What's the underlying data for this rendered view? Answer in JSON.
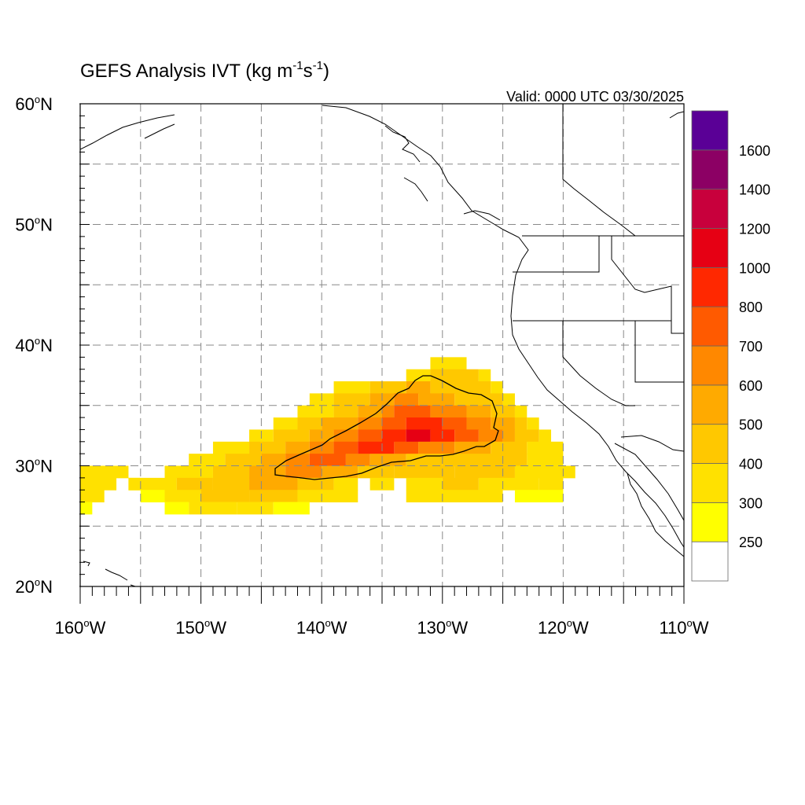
{
  "header": {
    "title_prefix": "GEFS Analysis IVT (kg m",
    "title_exp1": "-1",
    "title_mid": "s",
    "title_exp2": "-1",
    "title_suffix": ")",
    "valid": "Valid: 0000 UTC 03/30/2025"
  },
  "map": {
    "lon_range": [
      -160,
      -110
    ],
    "lat_range": [
      20,
      60
    ],
    "lat_labels": [
      {
        "lat": 60,
        "num": "60",
        "hemi": "N"
      },
      {
        "lat": 50,
        "num": "50",
        "hemi": "N"
      },
      {
        "lat": 40,
        "num": "40",
        "hemi": "N"
      },
      {
        "lat": 30,
        "num": "30",
        "hemi": "N"
      },
      {
        "lat": 20,
        "num": "20",
        "hemi": "N"
      }
    ],
    "lon_labels": [
      {
        "lon": -160,
        "num": "160",
        "hemi": "W"
      },
      {
        "lon": -150,
        "num": "150",
        "hemi": "W"
      },
      {
        "lon": -140,
        "num": "140",
        "hemi": "W"
      },
      {
        "lon": -130,
        "num": "130",
        "hemi": "W"
      },
      {
        "lon": -120,
        "num": "120",
        "hemi": "W"
      },
      {
        "lon": -110,
        "num": "110",
        "hemi": "W"
      }
    ],
    "grid_lats": [
      25,
      30,
      35,
      40,
      45,
      50,
      55
    ],
    "grid_lons": [
      -155,
      -150,
      -145,
      -140,
      -135,
      -130,
      -125,
      -120,
      -115
    ],
    "ivt_field": {
      "units": "kg m-1 s-1",
      "cell_deg": 1,
      "rows": [
        {
          "lat": 38.5,
          "cells": [
            [
              -131,
              -128,
              300
            ]
          ]
        },
        {
          "lat": 37.5,
          "cells": [
            [
              -133,
              -131,
              300
            ],
            [
              -131,
              -127,
              400
            ],
            [
              -127,
              -126,
              300
            ]
          ]
        },
        {
          "lat": 36.5,
          "cells": [
            [
              -139,
              -136,
              300
            ],
            [
              -136,
              -133,
              400
            ],
            [
              -133,
              -131,
              500
            ],
            [
              -131,
              -126,
              400
            ],
            [
              -126,
              -125,
              300
            ]
          ]
        },
        {
          "lat": 35.5,
          "cells": [
            [
              -141,
              -139,
              300
            ],
            [
              -139,
              -136,
              400
            ],
            [
              -136,
              -134,
              500
            ],
            [
              -134,
              -132,
              600
            ],
            [
              -132,
              -129,
              500
            ],
            [
              -129,
              -125,
              400
            ],
            [
              -125,
              -124,
              300
            ]
          ]
        },
        {
          "lat": 34.5,
          "cells": [
            [
              -142,
              -139,
              300
            ],
            [
              -139,
              -137,
              400
            ],
            [
              -137,
              -135,
              500
            ],
            [
              -135,
              -134,
              600
            ],
            [
              -134,
              -131,
              700
            ],
            [
              -131,
              -128,
              600
            ],
            [
              -128,
              -126,
              500
            ],
            [
              -126,
              -124,
              400
            ],
            [
              -124,
              -123,
              300
            ]
          ]
        },
        {
          "lat": 33.5,
          "cells": [
            [
              -144,
              -142,
              300
            ],
            [
              -142,
              -140,
              400
            ],
            [
              -140,
              -137,
              500
            ],
            [
              -137,
              -135,
              600
            ],
            [
              -135,
              -133,
              700
            ],
            [
              -133,
              -130,
              800
            ],
            [
              -130,
              -128,
              700
            ],
            [
              -128,
              -126,
              600
            ],
            [
              -126,
              -124,
              500
            ],
            [
              -124,
              -123,
              400
            ],
            [
              -123,
              -122,
              300
            ]
          ]
        },
        {
          "lat": 32.5,
          "cells": [
            [
              -146,
              -144,
              300
            ],
            [
              -144,
              -141,
              400
            ],
            [
              -141,
              -139,
              500
            ],
            [
              -139,
              -137,
              600
            ],
            [
              -137,
              -135,
              700
            ],
            [
              -135,
              -133,
              800
            ],
            [
              -133,
              -131,
              1000
            ],
            [
              -131,
              -129,
              800
            ],
            [
              -129,
              -127,
              700
            ],
            [
              -127,
              -125,
              600
            ],
            [
              -125,
              -124,
              500
            ],
            [
              -124,
              -122,
              400
            ],
            [
              -122,
              -121,
              300
            ]
          ]
        },
        {
          "lat": 31.5,
          "cells": [
            [
              -149,
              -146,
              300
            ],
            [
              -146,
              -143,
              400
            ],
            [
              -143,
              -141,
              500
            ],
            [
              -141,
              -139,
              600
            ],
            [
              -139,
              -137,
              700
            ],
            [
              -137,
              -134,
              800
            ],
            [
              -134,
              -132,
              700
            ],
            [
              -132,
              -129,
              600
            ],
            [
              -129,
              -126,
              500
            ],
            [
              -126,
              -123,
              400
            ],
            [
              -123,
              -120,
              300
            ]
          ]
        },
        {
          "lat": 30.5,
          "cells": [
            [
              -151,
              -148,
              300
            ],
            [
              -148,
              -145,
              400
            ],
            [
              -145,
              -143,
              500
            ],
            [
              -143,
              -141,
              600
            ],
            [
              -141,
              -138,
              700
            ],
            [
              -138,
              -136,
              600
            ],
            [
              -136,
              -133,
              500
            ],
            [
              -133,
              -130,
              400
            ],
            [
              -130,
              -123,
              400
            ],
            [
              -123,
              -120,
              300
            ]
          ]
        },
        {
          "lat": 29.5,
          "cells": [
            [
              -160,
              -156,
              300
            ],
            [
              -153,
              -149,
              300
            ],
            [
              -149,
              -146,
              400
            ],
            [
              -146,
              -143,
              500
            ],
            [
              -143,
              -140,
              600
            ],
            [
              -140,
              -137,
              500
            ],
            [
              -137,
              -134,
              400
            ],
            [
              -134,
              -129,
              400
            ],
            [
              -129,
              -124,
              400
            ],
            [
              -124,
              -119,
              300
            ]
          ]
        },
        {
          "lat": 28.5,
          "cells": [
            [
              -160,
              -157,
              300
            ],
            [
              -156,
              -155,
              250
            ],
            [
              -156,
              -152,
              300
            ],
            [
              -152,
              -149,
              400
            ],
            [
              -149,
              -146,
              400
            ],
            [
              -146,
              -142,
              500
            ],
            [
              -142,
              -139,
              400
            ],
            [
              -139,
              -137,
              300
            ],
            [
              -136,
              -134,
              300
            ],
            [
              -133,
              -130,
              300
            ],
            [
              -130,
              -127,
              400
            ],
            [
              -127,
              -122,
              300
            ],
            [
              -122,
              -120,
              300
            ]
          ]
        },
        {
          "lat": 27.5,
          "cells": [
            [
              -160,
              -158,
              300
            ],
            [
              -155,
              -153,
              250
            ],
            [
              -153,
              -150,
              300
            ],
            [
              -150,
              -146,
              400
            ],
            [
              -146,
              -142,
              400
            ],
            [
              -142,
              -137,
              300
            ],
            [
              -133,
              -125,
              300
            ],
            [
              -124,
              -120,
              250
            ]
          ]
        },
        {
          "lat": 26.5,
          "cells": [
            [
              -160,
              -159,
              250
            ],
            [
              -153,
              -151,
              250
            ],
            [
              -151,
              -147,
              300
            ],
            [
              -147,
              -144,
              300
            ],
            [
              -144,
              -141,
              250
            ]
          ]
        }
      ]
    }
  },
  "colorbar": {
    "levels": [
      250,
      300,
      400,
      500,
      600,
      700,
      800,
      1000,
      1200,
      1400,
      1600
    ],
    "bins": [
      {
        "color": "#ffffff"
      },
      {
        "color": "#ffff00"
      },
      {
        "color": "#ffe100"
      },
      {
        "color": "#ffc800"
      },
      {
        "color": "#ffaa00"
      },
      {
        "color": "#ff8800"
      },
      {
        "color": "#ff5a00"
      },
      {
        "color": "#ff2800"
      },
      {
        "color": "#e60014"
      },
      {
        "color": "#c8003c"
      },
      {
        "color": "#8c0064"
      },
      {
        "color": "#5a0096"
      }
    ],
    "labels": [
      "250",
      "300",
      "400",
      "500",
      "600",
      "700",
      "800",
      "1000",
      "1200",
      "1400",
      "1600"
    ]
  },
  "value_colors": {
    "250": "#ffff00",
    "300": "#ffe100",
    "400": "#ffc800",
    "500": "#ffaa00",
    "600": "#ff8800",
    "700": "#ff5a00",
    "800": "#ff2800",
    "1000": "#e60014"
  }
}
